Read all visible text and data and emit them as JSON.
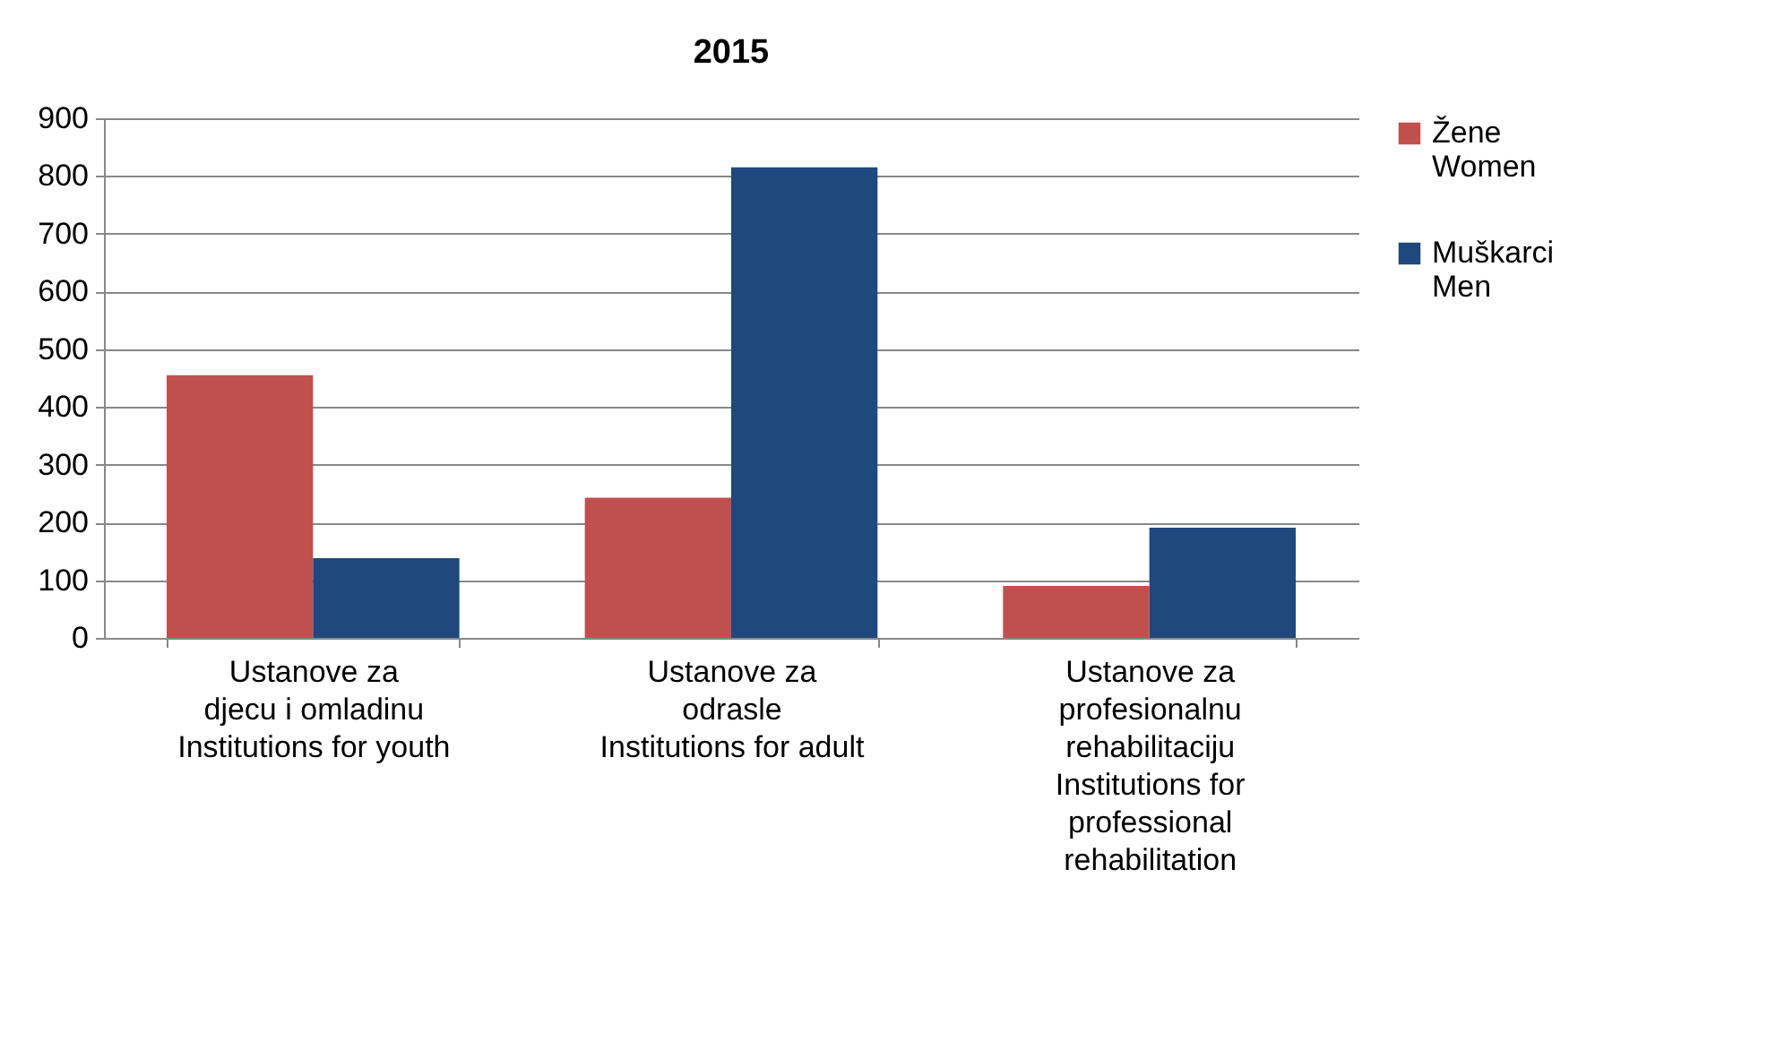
{
  "chart_data": {
    "type": "bar",
    "title": "2015",
    "categories": [
      "Ustanove za\ndjecu i omladinu\nInstitutions for youth",
      "Ustanove za\nodrasle\nInstitutions for adult",
      "Ustanove za\nprofesionalnu\nrehabilitaciju\nInstitutions for\nprofessional\nrehabilitation"
    ],
    "series": [
      {
        "name": "Žene\nWomen",
        "color": "#c0504d",
        "values": [
          455,
          243,
          90
        ]
      },
      {
        "name": "Muškarci\nMen",
        "color": "#1f497d",
        "values": [
          138,
          815,
          191
        ]
      }
    ],
    "ylim": [
      0,
      900
    ],
    "yticks": [
      0,
      100,
      200,
      300,
      400,
      500,
      600,
      700,
      800,
      900
    ],
    "grid": "y",
    "legend": "right"
  }
}
